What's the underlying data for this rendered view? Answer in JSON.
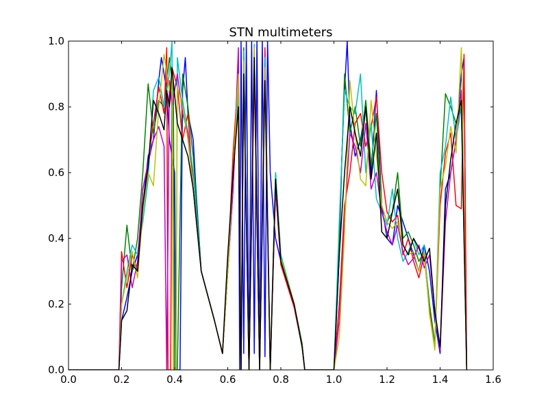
{
  "chart_data": {
    "type": "line",
    "title": "STN multimeters",
    "xlabel": "",
    "ylabel": "",
    "xlim": [
      0.0,
      1.6
    ],
    "ylim": [
      0.0,
      1.0
    ],
    "xticks": [
      0.0,
      0.2,
      0.4,
      0.6,
      0.8,
      1.0,
      1.2,
      1.4,
      1.6
    ],
    "xtick_labels": [
      "0.0",
      "0.2",
      "0.4",
      "0.6",
      "0.8",
      "1.0",
      "1.2",
      "1.4",
      "1.6"
    ],
    "yticks": [
      0.0,
      0.2,
      0.4,
      0.6,
      0.8,
      1.0
    ],
    "ytick_labels": [
      "0.0",
      "0.2",
      "0.4",
      "0.6",
      "0.8",
      "1.0"
    ],
    "grid": false,
    "legend": "none",
    "series": [
      {
        "color": "#0000ff",
        "x": [
          0.0,
          0.19,
          0.2,
          0.22,
          0.24,
          0.26,
          0.28,
          0.3,
          0.32,
          0.34,
          0.35,
          0.37,
          0.38,
          0.4,
          0.405,
          0.415,
          0.42,
          0.43,
          0.44,
          0.45,
          0.47,
          0.48,
          0.5,
          0.55,
          0.58,
          0.6,
          0.62,
          0.64,
          0.645,
          0.65,
          0.66,
          0.67,
          0.68,
          0.69,
          0.7,
          0.71,
          0.72,
          0.73,
          0.74,
          0.75,
          0.76,
          0.77,
          0.78,
          0.8,
          0.85,
          0.88,
          0.89,
          1.0,
          1.02,
          1.03,
          1.04,
          1.05,
          1.06,
          1.08,
          1.1,
          1.12,
          1.14,
          1.16,
          1.18,
          1.2,
          1.22,
          1.24,
          1.26,
          1.28,
          1.3,
          1.32,
          1.34,
          1.36,
          1.38,
          1.4,
          1.42,
          1.44,
          1.46,
          1.48,
          1.49,
          1.5
        ],
        "values": [
          0.0,
          0.0,
          0.15,
          0.22,
          0.3,
          0.35,
          0.5,
          0.65,
          0.7,
          0.88,
          0.95,
          0.85,
          0.7,
          0.6,
          0.0,
          0.0,
          0.0,
          0.85,
          0.95,
          0.78,
          0.7,
          0.55,
          0.3,
          0.15,
          0.05,
          0.3,
          0.55,
          0.92,
          0.0,
          1.0,
          0.05,
          1.0,
          0.02,
          1.0,
          0.05,
          1.0,
          0.03,
          1.0,
          0.04,
          1.0,
          0.6,
          0.5,
          0.4,
          0.33,
          0.2,
          0.08,
          0.0,
          0.0,
          0.35,
          0.65,
          0.85,
          1.0,
          0.75,
          0.65,
          0.7,
          0.8,
          0.6,
          0.85,
          0.5,
          0.4,
          0.38,
          0.5,
          0.45,
          0.4,
          0.35,
          0.3,
          0.38,
          0.3,
          0.15,
          0.05,
          0.55,
          0.6,
          0.7,
          0.9,
          0.95,
          0.0
        ]
      },
      {
        "color": "#008000",
        "x": [
          0.0,
          0.19,
          0.2,
          0.22,
          0.24,
          0.26,
          0.28,
          0.3,
          0.32,
          0.34,
          0.36,
          0.38,
          0.395,
          0.4,
          0.41,
          0.43,
          0.45,
          0.47,
          0.5,
          0.55,
          0.58,
          0.6,
          0.62,
          0.64,
          0.65,
          0.66,
          0.68,
          0.7,
          0.72,
          0.74,
          0.76,
          0.78,
          0.8,
          0.85,
          0.88,
          0.89,
          1.0,
          1.02,
          1.04,
          1.06,
          1.08,
          1.1,
          1.12,
          1.14,
          1.16,
          1.18,
          1.2,
          1.22,
          1.24,
          1.26,
          1.28,
          1.3,
          1.32,
          1.34,
          1.36,
          1.38,
          1.4,
          1.42,
          1.44,
          1.46,
          1.48,
          1.5
        ],
        "values": [
          0.0,
          0.0,
          0.25,
          0.44,
          0.3,
          0.4,
          0.6,
          0.87,
          0.72,
          0.82,
          0.8,
          0.95,
          0.85,
          0.0,
          0.0,
          0.9,
          0.8,
          0.65,
          0.3,
          0.15,
          0.05,
          0.3,
          0.6,
          0.82,
          0.0,
          0.98,
          0.0,
          0.96,
          0.0,
          0.94,
          0.0,
          0.6,
          0.35,
          0.2,
          0.08,
          0.0,
          0.0,
          0.4,
          0.9,
          0.72,
          0.8,
          0.68,
          0.82,
          0.62,
          0.78,
          0.5,
          0.45,
          0.48,
          0.6,
          0.4,
          0.42,
          0.38,
          0.33,
          0.36,
          0.2,
          0.08,
          0.55,
          0.84,
          0.8,
          0.75,
          0.8,
          0.0
        ]
      },
      {
        "color": "#ff0000",
        "x": [
          0.0,
          0.19,
          0.2,
          0.22,
          0.24,
          0.26,
          0.28,
          0.3,
          0.32,
          0.34,
          0.36,
          0.37,
          0.375,
          0.385,
          0.39,
          0.41,
          0.43,
          0.45,
          0.47,
          0.5,
          0.55,
          0.58,
          0.6,
          0.62,
          0.64,
          0.65,
          0.66,
          0.68,
          0.7,
          0.72,
          0.74,
          0.76,
          0.78,
          0.8,
          0.85,
          0.88,
          0.89,
          1.0,
          1.02,
          1.04,
          1.06,
          1.08,
          1.1,
          1.12,
          1.14,
          1.16,
          1.18,
          1.2,
          1.22,
          1.24,
          1.26,
          1.28,
          1.3,
          1.32,
          1.34,
          1.36,
          1.38,
          1.4,
          1.42,
          1.44,
          1.46,
          1.48,
          1.49,
          1.5
        ],
        "values": [
          0.0,
          0.0,
          0.36,
          0.25,
          0.35,
          0.3,
          0.55,
          0.63,
          0.75,
          0.86,
          0.78,
          0.98,
          0.0,
          0.0,
          0.92,
          0.86,
          0.7,
          0.78,
          0.55,
          0.3,
          0.15,
          0.05,
          0.3,
          0.66,
          0.9,
          0.0,
          0.95,
          0.0,
          0.9,
          0.0,
          0.98,
          0.0,
          0.55,
          0.32,
          0.19,
          0.07,
          0.0,
          0.0,
          0.2,
          0.5,
          0.6,
          0.75,
          0.78,
          0.68,
          0.74,
          0.83,
          0.6,
          0.48,
          0.45,
          0.47,
          0.35,
          0.4,
          0.33,
          0.28,
          0.35,
          0.18,
          0.07,
          0.5,
          0.66,
          0.72,
          0.5,
          0.49,
          0.96,
          0.0
        ]
      },
      {
        "color": "#00bfbf",
        "x": [
          0.0,
          0.19,
          0.2,
          0.22,
          0.24,
          0.26,
          0.28,
          0.3,
          0.32,
          0.34,
          0.36,
          0.38,
          0.39,
          0.395,
          0.405,
          0.41,
          0.43,
          0.45,
          0.47,
          0.5,
          0.55,
          0.58,
          0.6,
          0.62,
          0.64,
          0.65,
          0.66,
          0.68,
          0.7,
          0.72,
          0.74,
          0.76,
          0.78,
          0.8,
          0.85,
          0.88,
          0.89,
          1.0,
          1.02,
          1.04,
          1.06,
          1.08,
          1.1,
          1.12,
          1.14,
          1.16,
          1.18,
          1.2,
          1.22,
          1.24,
          1.26,
          1.28,
          1.3,
          1.32,
          1.34,
          1.36,
          1.38,
          1.4,
          1.42,
          1.44,
          1.46,
          1.48,
          1.5
        ],
        "values": [
          0.0,
          0.0,
          0.2,
          0.3,
          0.38,
          0.35,
          0.45,
          0.58,
          0.85,
          0.89,
          0.8,
          0.9,
          1.0,
          0.0,
          0.0,
          0.95,
          0.82,
          0.72,
          0.6,
          0.3,
          0.15,
          0.05,
          0.3,
          0.6,
          0.85,
          0.0,
          0.97,
          0.0,
          0.99,
          0.0,
          0.95,
          0.0,
          0.6,
          0.35,
          0.2,
          0.07,
          0.0,
          0.0,
          0.45,
          0.85,
          0.8,
          0.78,
          0.9,
          0.6,
          0.75,
          0.52,
          0.48,
          0.44,
          0.55,
          0.4,
          0.33,
          0.36,
          0.4,
          0.35,
          0.38,
          0.17,
          0.07,
          0.6,
          0.68,
          0.83,
          0.7,
          0.8,
          0.0
        ]
      },
      {
        "color": "#bf00bf",
        "x": [
          0.0,
          0.19,
          0.2,
          0.22,
          0.24,
          0.26,
          0.28,
          0.3,
          0.32,
          0.34,
          0.36,
          0.37,
          0.38,
          0.39,
          0.41,
          0.43,
          0.45,
          0.47,
          0.5,
          0.55,
          0.58,
          0.6,
          0.62,
          0.64,
          0.65,
          0.66,
          0.68,
          0.7,
          0.72,
          0.74,
          0.76,
          0.78,
          0.8,
          0.85,
          0.88,
          0.89,
          1.0,
          1.02,
          1.04,
          1.06,
          1.08,
          1.1,
          1.12,
          1.14,
          1.16,
          1.18,
          1.2,
          1.22,
          1.24,
          1.26,
          1.28,
          1.3,
          1.32,
          1.34,
          1.36,
          1.38,
          1.4,
          1.42,
          1.44,
          1.46,
          1.48,
          1.5
        ],
        "values": [
          0.0,
          0.0,
          0.33,
          0.35,
          0.25,
          0.33,
          0.55,
          0.63,
          0.7,
          0.74,
          0.68,
          0.0,
          0.88,
          0.8,
          0.9,
          0.78,
          0.72,
          0.55,
          0.3,
          0.15,
          0.05,
          0.3,
          0.55,
          0.98,
          0.0,
          0.9,
          0.0,
          0.95,
          0.0,
          0.9,
          0.0,
          0.55,
          0.33,
          0.2,
          0.07,
          0.0,
          0.0,
          0.15,
          0.45,
          0.72,
          0.68,
          0.6,
          0.75,
          0.55,
          0.6,
          0.48,
          0.42,
          0.38,
          0.44,
          0.36,
          0.32,
          0.34,
          0.38,
          0.31,
          0.35,
          0.18,
          0.06,
          0.45,
          0.6,
          0.7,
          0.85,
          0.0
        ]
      },
      {
        "color": "#bfbf00",
        "x": [
          0.0,
          0.19,
          0.2,
          0.22,
          0.24,
          0.26,
          0.28,
          0.3,
          0.32,
          0.34,
          0.36,
          0.38,
          0.39,
          0.395,
          0.405,
          0.41,
          0.43,
          0.45,
          0.47,
          0.5,
          0.55,
          0.58,
          0.6,
          0.62,
          0.64,
          0.65,
          0.66,
          0.68,
          0.7,
          0.72,
          0.74,
          0.76,
          0.78,
          0.8,
          0.85,
          0.88,
          0.89,
          1.0,
          1.02,
          1.04,
          1.06,
          1.08,
          1.1,
          1.12,
          1.14,
          1.16,
          1.18,
          1.2,
          1.22,
          1.24,
          1.26,
          1.28,
          1.3,
          1.32,
          1.34,
          1.36,
          1.38,
          1.4,
          1.42,
          1.44,
          1.46,
          1.48,
          1.5
        ],
        "values": [
          0.0,
          0.0,
          0.2,
          0.28,
          0.36,
          0.28,
          0.48,
          0.6,
          0.56,
          0.8,
          0.96,
          0.85,
          0.9,
          0.0,
          0.0,
          0.86,
          0.8,
          0.7,
          0.55,
          0.3,
          0.15,
          0.05,
          0.3,
          0.6,
          0.9,
          0.0,
          0.94,
          0.0,
          0.98,
          0.0,
          0.92,
          0.0,
          0.58,
          0.34,
          0.2,
          0.07,
          0.0,
          0.0,
          0.1,
          0.42,
          0.88,
          0.72,
          0.58,
          0.56,
          0.82,
          0.65,
          0.5,
          0.45,
          0.43,
          0.45,
          0.38,
          0.35,
          0.36,
          0.3,
          0.36,
          0.17,
          0.06,
          0.55,
          0.62,
          0.74,
          0.66,
          0.98,
          0.0
        ]
      },
      {
        "color": "#000000",
        "x": [
          0.0,
          0.19,
          0.2,
          0.22,
          0.24,
          0.26,
          0.28,
          0.3,
          0.32,
          0.34,
          0.36,
          0.37,
          0.38,
          0.39,
          0.41,
          0.43,
          0.45,
          0.47,
          0.5,
          0.55,
          0.58,
          0.6,
          0.62,
          0.64,
          0.65,
          0.66,
          0.68,
          0.7,
          0.72,
          0.74,
          0.76,
          0.78,
          0.8,
          0.85,
          0.88,
          0.89,
          1.0,
          1.02,
          1.04,
          1.06,
          1.08,
          1.1,
          1.12,
          1.14,
          1.16,
          1.18,
          1.2,
          1.22,
          1.24,
          1.26,
          1.28,
          1.3,
          1.32,
          1.34,
          1.36,
          1.38,
          1.4,
          1.42,
          1.44,
          1.46,
          1.48,
          1.5
        ],
        "values": [
          0.0,
          0.0,
          0.15,
          0.18,
          0.32,
          0.3,
          0.5,
          0.62,
          0.82,
          0.78,
          0.73,
          0.85,
          0.8,
          0.92,
          0.75,
          0.7,
          0.65,
          0.55,
          0.3,
          0.15,
          0.05,
          0.35,
          0.6,
          0.8,
          0.0,
          0.9,
          0.0,
          0.95,
          0.0,
          0.88,
          0.0,
          0.58,
          0.33,
          0.2,
          0.07,
          0.0,
          0.0,
          0.35,
          0.6,
          0.8,
          0.72,
          0.65,
          0.8,
          0.58,
          0.72,
          0.42,
          0.4,
          0.48,
          0.55,
          0.38,
          0.35,
          0.4,
          0.37,
          0.33,
          0.37,
          0.18,
          0.07,
          0.5,
          0.64,
          0.75,
          0.82,
          0.0
        ]
      }
    ]
  }
}
